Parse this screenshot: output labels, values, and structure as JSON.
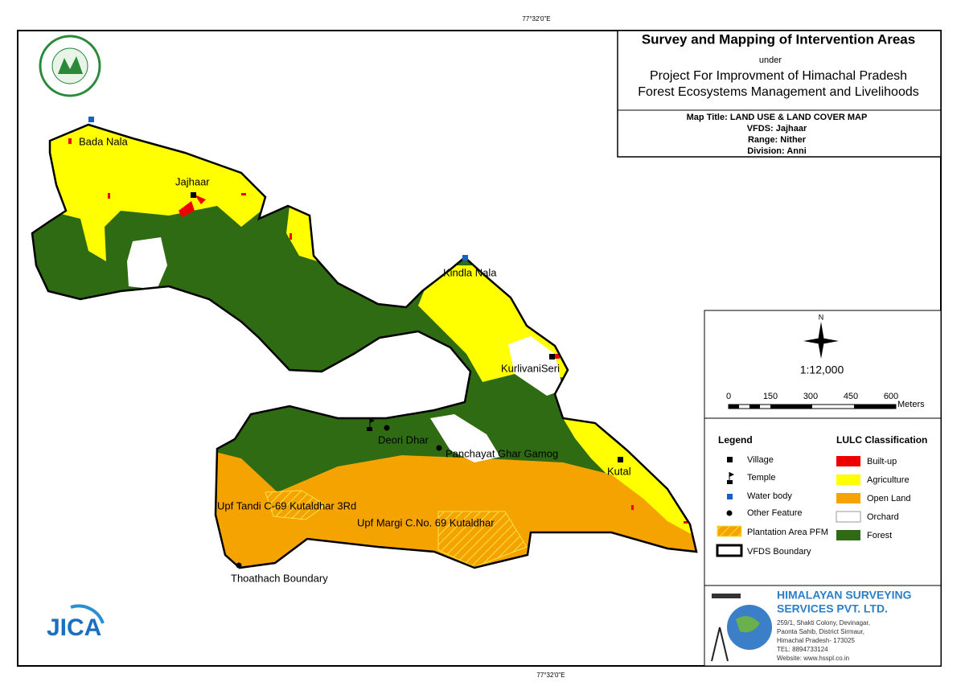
{
  "coordinate_labels": {
    "top": "77°32'0\"E",
    "bottom": "77°32'0\"E"
  },
  "title_block": {
    "title": "Survey and Mapping of Intervention Areas",
    "under": "under",
    "project": [
      "Project For Improvment of Himachal Pradesh",
      "Forest Ecosystems Management and Livelihoods"
    ],
    "details": [
      "Map Title: LAND USE & LAND COVER MAP",
      "VFDS: Jajhaar",
      "Range: Nither",
      "Division: Anni"
    ]
  },
  "map_labels": [
    "Bada Nala",
    "Jajhaar",
    "Kindla Nala",
    "KurlivaniSeri",
    "Deori Dhar",
    "Panchayat Ghar Gamog",
    "Kutal",
    "Upf Tandi C-69 Kutaldhar 3Rd",
    "Upf Margi C.No. 69 Kutaldhar",
    "Thoathach Boundary"
  ],
  "north": "N",
  "scale": "1:12,000",
  "scale_bar": {
    "ticks": [
      0,
      150,
      300,
      450,
      600
    ],
    "unit": "Meters"
  },
  "legend": {
    "title": "Legend",
    "items": [
      "Village",
      "Temple",
      "Water body",
      "Other Feature",
      "Plantation Area PFM",
      "VFDS Boundary"
    ]
  },
  "lulc": {
    "title": "LULC Classification",
    "items": [
      "Built-up",
      "Agriculture",
      "Open Land",
      "Orchard",
      "Forest"
    ]
  },
  "company": {
    "name": [
      "HIMALAYAN SURVEYING",
      "SERVICES PVT. LTD."
    ],
    "address": [
      "259/1, Shakti Colony, Devinagar,",
      "Paonta Sahib, District Sirmaur,",
      "Himachal Pradesh- 173025",
      "TEL: 8894733124",
      "Website: www.hsspl.co.in"
    ]
  },
  "logo": "JICA"
}
